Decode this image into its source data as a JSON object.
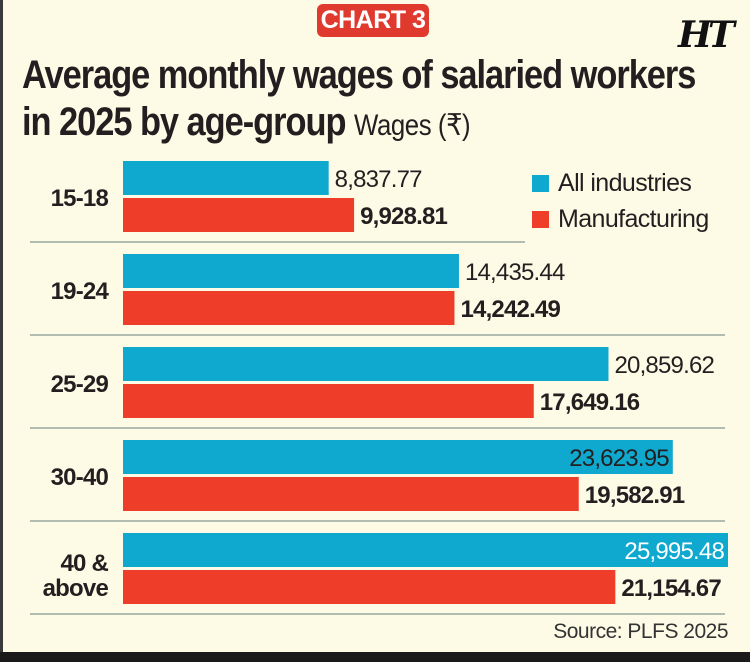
{
  "badge": "CHART 3",
  "logo": "HT",
  "colors": {
    "all": "#0fa9cf",
    "mfg": "#ee3e2a",
    "background": "#fdfbe6",
    "gridline": "#9aa79f",
    "text": "#231f20"
  },
  "chart_data": {
    "type": "bar",
    "orientation": "horizontal",
    "title": "Average monthly wages of salaried workers in 2025 by age-group",
    "subtitle": "Wages (₹)",
    "categories": [
      "15-18",
      "19-24",
      "25-29",
      "30-40",
      "40 & above"
    ],
    "series": [
      {
        "name": "All industries",
        "values": [
          8837.77,
          14435.44,
          20859.62,
          23623.95,
          25995.48
        ],
        "labels": [
          "8,837.77",
          "14,435.44",
          "20,859.62",
          "23,623.95",
          "25,995.48"
        ]
      },
      {
        "name": "Manufacturing",
        "values": [
          9928.81,
          14242.49,
          17649.16,
          19582.91,
          21154.67
        ],
        "labels": [
          "9,928.81",
          "14,242.49",
          "17,649.16",
          "19,582.91",
          "21,154.67"
        ]
      }
    ],
    "xlim": [
      0,
      26000
    ],
    "legend": "top-right",
    "grid": false,
    "source": "Source: PLFS 2025"
  }
}
